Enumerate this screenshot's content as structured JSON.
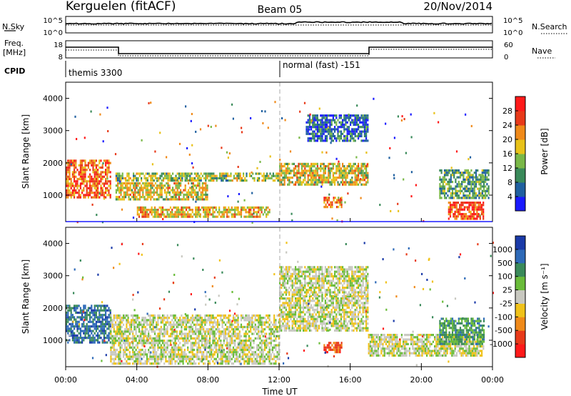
{
  "header": {
    "station": "Kerguelen (fitACF)",
    "beam": "Beam 05",
    "date": "20/Nov/2014"
  },
  "noise_panel": {
    "left_label": "N.Sky",
    "right_label": "N.Search",
    "ytick_top": "10^5",
    "ytick_bottom": "10^0"
  },
  "freq_panel": {
    "left_label_1": "Freq.",
    "left_label_2": "[MHz]",
    "left_tick_top": "18",
    "left_tick_bottom": "8",
    "right_label": "Nave",
    "right_tick_top": "60",
    "right_tick_bottom": "0"
  },
  "cpid": {
    "label": "CPID",
    "segments": [
      "themis 3300",
      "normal (fast) -151"
    ]
  },
  "time_axis": {
    "label": "Time UT",
    "ticks": [
      "00:00",
      "04:00",
      "08:00",
      "12:00",
      "16:00",
      "20:00",
      "00:00"
    ]
  },
  "range_axis": {
    "label": "Slant Range [km]",
    "ticks": [
      "1000",
      "2000",
      "3000",
      "4000"
    ]
  },
  "power_colorbar": {
    "label": "Power [dB]",
    "ticks": [
      "4",
      "8",
      "12",
      "16",
      "20",
      "24",
      "28"
    ],
    "colors": [
      "#1a1aff",
      "#2060a0",
      "#3a8a5a",
      "#7ab848",
      "#e8c21a",
      "#f08a1a",
      "#e83a1a",
      "#ff1a1a"
    ]
  },
  "velocity_colorbar": {
    "label": "Velocity [m s⁻¹]",
    "ticks": [
      "1000",
      "500",
      "100",
      "25",
      "-25",
      "-100",
      "-500",
      "-1000"
    ],
    "colors": [
      "#1a3aa8",
      "#2e6ab8",
      "#3a8a5a",
      "#6abc3a",
      "#c8c8c0",
      "#f0c21a",
      "#f08a1a",
      "#e83a1a",
      "#ff1a1a"
    ]
  },
  "chart_data": [
    {
      "type": "heatmap",
      "title": "Power",
      "xlabel": "Time UT",
      "ylabel": "Slant Range [km]",
      "xlim": [
        "00:00",
        "24:00"
      ],
      "ylim": [
        180,
        4500
      ],
      "colorbar_label": "Power [dB]",
      "bands": [
        {
          "t_start": 0.0,
          "t_end": 2.5,
          "r_min": 900,
          "r_max": 2100,
          "level": 0.75
        },
        {
          "t_start": 2.8,
          "t_end": 12.0,
          "r_min": 1450,
          "r_max": 1700,
          "level": 0.45
        },
        {
          "t_start": 2.8,
          "t_end": 8.0,
          "r_min": 900,
          "r_max": 1400,
          "level": 0.55
        },
        {
          "t_start": 4.0,
          "t_end": 11.5,
          "r_min": 300,
          "r_max": 650,
          "level": 0.6
        },
        {
          "t_start": 12.0,
          "t_end": 17.0,
          "r_min": 1300,
          "r_max": 2000,
          "level": 0.55
        },
        {
          "t_start": 13.5,
          "t_end": 17.0,
          "r_min": 2700,
          "r_max": 3500,
          "level": 0.2
        },
        {
          "t_start": 14.5,
          "t_end": 15.5,
          "r_min": 600,
          "r_max": 950,
          "level": 0.7
        },
        {
          "t_start": 21.5,
          "t_end": 23.5,
          "r_min": 300,
          "r_max": 800,
          "level": 0.8
        },
        {
          "t_start": 21.0,
          "t_end": 23.8,
          "r_min": 900,
          "r_max": 1800,
          "level": 0.35
        }
      ]
    },
    {
      "type": "heatmap",
      "title": "Velocity",
      "xlabel": "Time UT",
      "ylabel": "Slant Range [km]",
      "xlim": [
        "00:00",
        "24:00"
      ],
      "ylim": [
        180,
        4500
      ],
      "colorbar_label": "Velocity [m s⁻¹]",
      "bands": [
        {
          "t_start": 0.0,
          "t_end": 2.5,
          "r_min": 900,
          "r_max": 2100,
          "level": 0.2
        },
        {
          "t_start": 2.5,
          "t_end": 12.0,
          "r_min": 300,
          "r_max": 1800,
          "level": 0.5
        },
        {
          "t_start": 12.0,
          "t_end": 17.0,
          "r_min": 1300,
          "r_max": 2400,
          "level": 0.5
        },
        {
          "t_start": 12.0,
          "t_end": 17.0,
          "r_min": 2400,
          "r_max": 3300,
          "level": 0.5
        },
        {
          "t_start": 14.5,
          "t_end": 15.5,
          "r_min": 600,
          "r_max": 950,
          "level": 0.8
        },
        {
          "t_start": 17.0,
          "t_end": 23.5,
          "r_min": 500,
          "r_max": 1200,
          "level": 0.5
        },
        {
          "t_start": 21.0,
          "t_end": 23.5,
          "r_min": 900,
          "r_max": 1700,
          "level": 0.3
        }
      ]
    }
  ]
}
